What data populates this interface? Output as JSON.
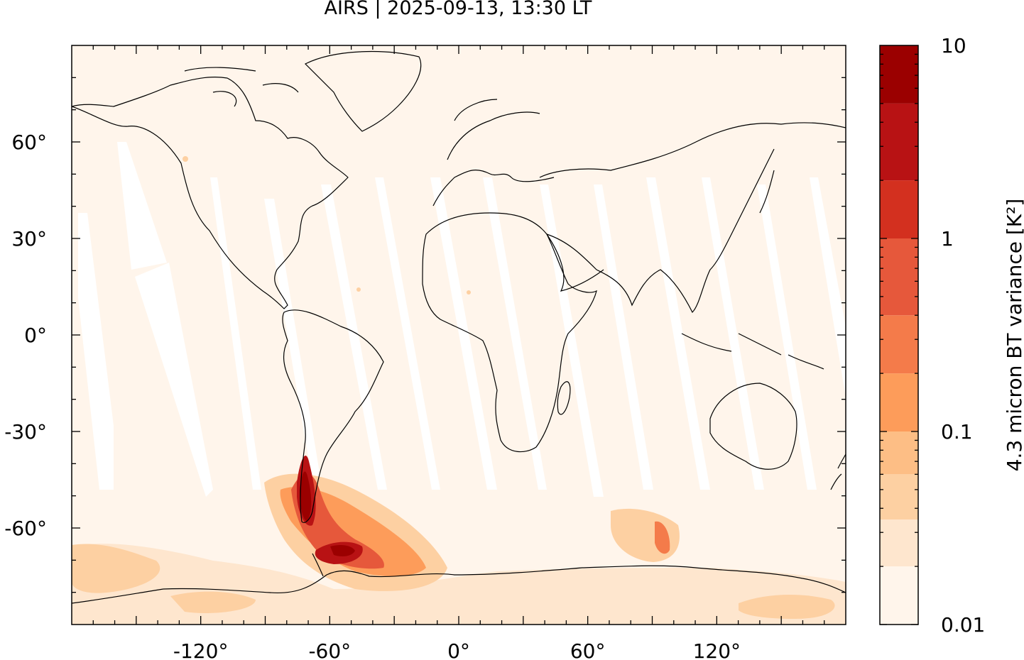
{
  "title": "AIRS | 2025-09-13, 13:30 LT",
  "map": {
    "lon_range": [
      -180,
      180
    ],
    "lat_range": [
      -90,
      90
    ],
    "x_ticks": [
      {
        "value": -120,
        "label": "-120°"
      },
      {
        "value": -60,
        "label": "-60°"
      },
      {
        "value": 0,
        "label": "0°"
      },
      {
        "value": 60,
        "label": "60°"
      },
      {
        "value": 120,
        "label": "120°"
      }
    ],
    "y_ticks": [
      {
        "value": 60,
        "label": "60°"
      },
      {
        "value": 30,
        "label": "30°"
      },
      {
        "value": 0,
        "label": "0°"
      },
      {
        "value": -30,
        "label": "-30°"
      },
      {
        "value": -60,
        "label": "-60°"
      }
    ],
    "background_color": "#fff5eb"
  },
  "colorbar": {
    "label": "4.3 micron BT variance [K²]",
    "scale": "log",
    "ticks": [
      {
        "value": 10,
        "label": "10"
      },
      {
        "value": 1,
        "label": "1"
      },
      {
        "value": 0.1,
        "label": "0.1"
      },
      {
        "value": 0.01,
        "label": "0.01"
      }
    ],
    "levels": [
      0.01,
      0.02,
      0.035,
      0.06,
      0.1,
      0.2,
      0.4,
      1,
      2,
      5,
      10
    ],
    "colors": [
      "#fff5eb",
      "#fee6ce",
      "#fdd0a2",
      "#fdbe85",
      "#fd9c5a",
      "#f47b4a",
      "#e6583b",
      "#d3301f",
      "#b81214",
      "#9b0000"
    ]
  }
}
